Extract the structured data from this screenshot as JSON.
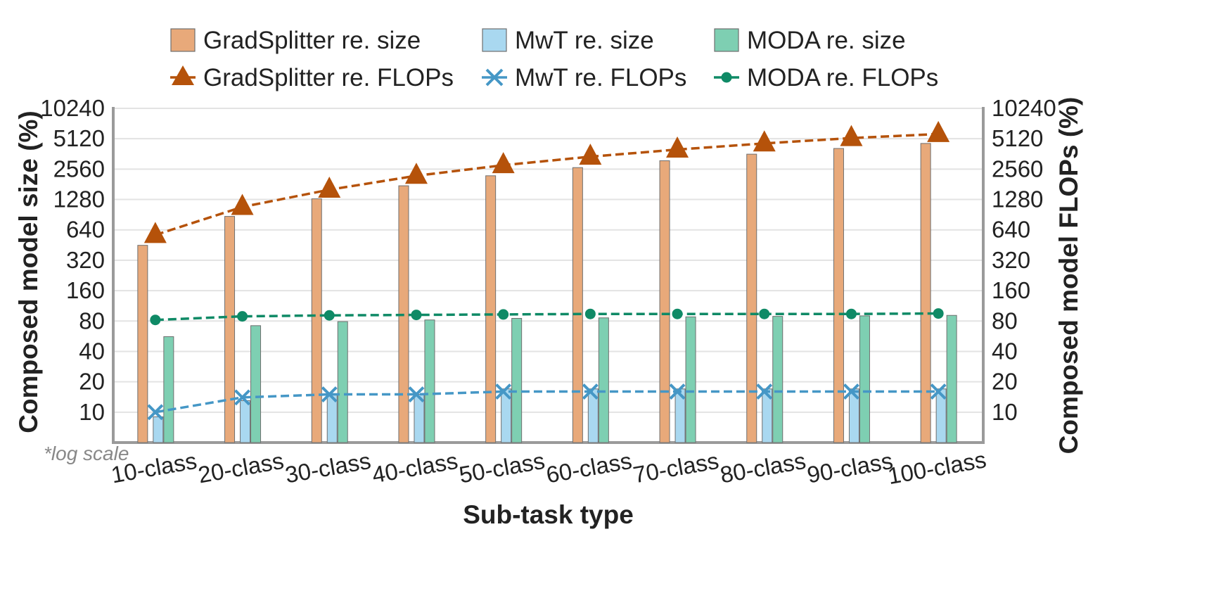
{
  "chart_data": {
    "type": "bar",
    "xlabel": "Sub-task type",
    "ylabel_left": "Composed model size (%)",
    "ylabel_right": "Composed model FLOPs (%)",
    "scale_note": "*log scale",
    "y_scale": "log",
    "ylim": [
      5,
      10240
    ],
    "y_ticks": [
      10,
      20,
      40,
      80,
      160,
      320,
      640,
      1280,
      2560,
      5120,
      10240
    ],
    "grid": "horizontal",
    "legend_position": "top",
    "categories": [
      "10-class",
      "20-class",
      "30-class",
      "40-class",
      "50-class",
      "60-class",
      "70-class",
      "80-class",
      "90-class",
      "100-class"
    ],
    "bar_series": [
      {
        "name": "GradSplitter re. size",
        "color": "#e8a97a",
        "values": [
          450,
          870,
          1300,
          1750,
          2200,
          2650,
          3100,
          3600,
          4100,
          4600
        ]
      },
      {
        "name": "MwT re. size",
        "color": "#a9d8f0",
        "values": [
          9,
          13,
          15,
          15,
          17,
          17,
          17,
          17,
          17,
          17
        ]
      },
      {
        "name": "MODA re. size",
        "color": "#7ecfb2",
        "values": [
          56,
          72,
          79,
          82,
          85,
          86,
          88,
          89,
          90,
          91
        ]
      }
    ],
    "line_series": [
      {
        "name": "GradSplitter re. FLOPs",
        "color": "#b5520a",
        "marker": "triangle",
        "values": [
          570,
          1080,
          1600,
          2200,
          2800,
          3400,
          4000,
          4600,
          5200,
          5700
        ]
      },
      {
        "name": "MwT re. FLOPs",
        "color": "#4597c6",
        "marker": "x",
        "values": [
          10,
          14,
          15,
          15,
          16,
          16,
          16,
          16,
          16,
          16
        ]
      },
      {
        "name": "MODA re. FLOPs",
        "color": "#0f8a66",
        "marker": "circle",
        "values": [
          82,
          89,
          91,
          92,
          93,
          94,
          94,
          94,
          94,
          95
        ]
      }
    ],
    "legend_rows": [
      [
        "GradSplitter re. size",
        "MwT re. size",
        "MODA re. size"
      ],
      [
        "GradSplitter re. FLOPs",
        "MwT re. FLOPs",
        "MODA re. FLOPs"
      ]
    ]
  }
}
